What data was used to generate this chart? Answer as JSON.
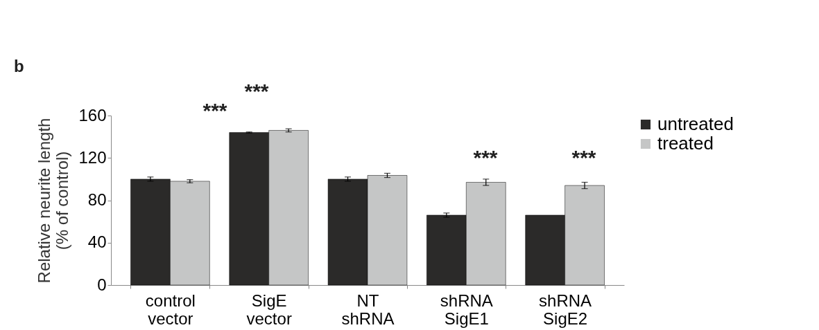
{
  "chart_data": {
    "type": "bar",
    "ylabel": "Relative neurite length (% of control)",
    "categories": [
      "control vector",
      "SigE vector",
      "NT shRNA",
      "shRNA SigE1",
      "shRNA SigE2"
    ],
    "series": [
      {
        "name": "untreated",
        "color": "#2b2a29",
        "values": [
          100,
          144,
          100,
          66,
          66
        ],
        "errors": [
          2,
          0.5,
          2,
          2,
          null
        ]
      },
      {
        "name": "treated",
        "color": "#c5c6c6",
        "values": [
          98,
          146,
          103.5,
          97,
          94
        ],
        "errors": [
          1.5,
          1.5,
          2,
          3,
          3
        ]
      }
    ],
    "ylim": [
      0,
      160
    ],
    "yticks": [
      0,
      40,
      80,
      120,
      160
    ],
    "grid": false,
    "legend": "right",
    "annotations": [
      "b",
      "***",
      "***",
      "***",
      "***"
    ]
  }
}
